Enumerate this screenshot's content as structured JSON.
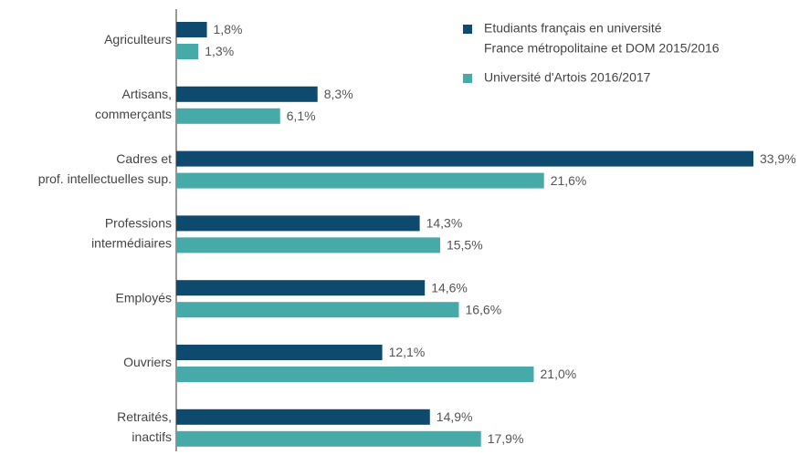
{
  "chart_data": {
    "type": "hbar",
    "categories": [
      [
        "Agriculteurs"
      ],
      [
        "Artisans,",
        "commerçants"
      ],
      [
        "Cadres et",
        "prof. intellectuelles sup."
      ],
      [
        "Professions",
        "intermédiaires"
      ],
      [
        "Employés"
      ],
      [
        "Ouvriers"
      ],
      [
        "Retraités,",
        "inactifs"
      ]
    ],
    "series": [
      {
        "name": [
          "Etudiants français en université",
          "France métropolitaine et DOM 2015/2016"
        ],
        "color": "#0d4a6e",
        "values": [
          1.8,
          8.3,
          33.9,
          14.3,
          14.6,
          12.1,
          14.9
        ],
        "value_labels": [
          "1,8%",
          "8,3%",
          "33,9%",
          "14,3%",
          "14,6%",
          "12,1%",
          "14,9%"
        ]
      },
      {
        "name": [
          "Université d'Artois 2016/2017"
        ],
        "color": "#45aaa8",
        "values": [
          1.3,
          6.1,
          21.6,
          15.5,
          16.6,
          21.0,
          17.9
        ],
        "value_labels": [
          "1,3%",
          "6,1%",
          "21,6%",
          "15,5%",
          "16,6%",
          "21,0%",
          "17,9%"
        ]
      }
    ],
    "xlim": [
      0,
      35
    ],
    "legend": "upper right"
  }
}
